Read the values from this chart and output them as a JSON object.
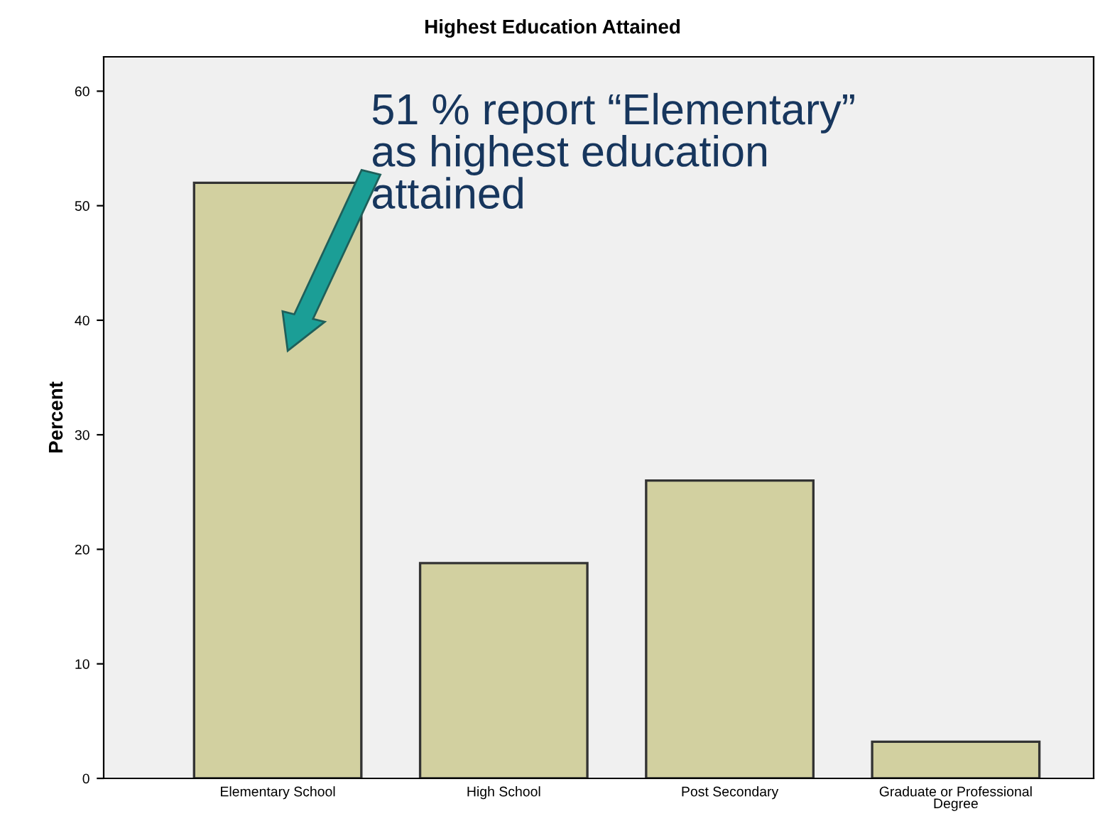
{
  "chart_data": {
    "type": "bar",
    "title": "Highest Education Attained",
    "ylabel": "Percent",
    "categories": [
      "Elementary School",
      "High School",
      "Post Secondary",
      "Graduate or Professional\nDegree"
    ],
    "values": [
      52,
      18.8,
      26,
      3.2
    ],
    "color": "#d2d0a0",
    "ylim": [
      0,
      63
    ],
    "yticks": [
      0,
      10,
      20,
      30,
      40,
      50,
      60
    ],
    "grid": false,
    "legend": false,
    "annotations": [
      "51 % report “Elementary”\nas highest education\nattained"
    ]
  }
}
